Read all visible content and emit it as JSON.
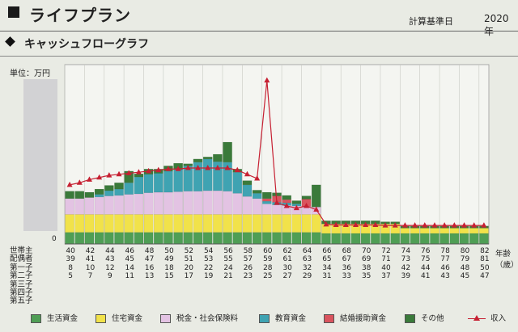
{
  "header": {
    "title": "ライフプラン",
    "calc_label": "計算基準日",
    "year": "2020年"
  },
  "section": {
    "title": "キャッシュフローグラフ",
    "unit": "単位：万円",
    "zero": "0"
  },
  "table": {
    "rows": [
      {
        "label": "世帯主",
        "values": [
          "40",
          "42",
          "44",
          "46",
          "48",
          "50",
          "52",
          "54",
          "56",
          "58",
          "60",
          "62",
          "64",
          "66",
          "68",
          "70",
          "72",
          "74",
          "76",
          "78",
          "80",
          "82"
        ]
      },
      {
        "label": "配偶者",
        "values": [
          "39",
          "41",
          "43",
          "45",
          "47",
          "49",
          "51",
          "53",
          "55",
          "57",
          "59",
          "61",
          "63",
          "65",
          "67",
          "69",
          "71",
          "73",
          "75",
          "77",
          "79",
          "81"
        ]
      },
      {
        "label": "第一子",
        "values": [
          "8",
          "10",
          "12",
          "14",
          "16",
          "18",
          "20",
          "22",
          "24",
          "26",
          "28",
          "30",
          "32",
          "34",
          "36",
          "38",
          "40",
          "42",
          "44",
          "46",
          "48",
          "50"
        ]
      },
      {
        "label": "第二子",
        "values": [
          "5",
          "7",
          "9",
          "11",
          "13",
          "15",
          "17",
          "19",
          "21",
          "23",
          "25",
          "27",
          "29",
          "31",
          "33",
          "35",
          "37",
          "39",
          "41",
          "43",
          "45",
          "47"
        ]
      },
      {
        "label": "第三子",
        "values": []
      },
      {
        "label": "第四子",
        "values": []
      },
      {
        "label": "第五子",
        "values": []
      }
    ],
    "x_unit": "年齢（歳）"
  },
  "legend": [
    {
      "label": "生活資金",
      "color": "#4f9e55"
    },
    {
      "label": "住宅資金",
      "color": "#f1e24a"
    },
    {
      "label": "税金・社会保険料",
      "color": "#e3c3e3"
    },
    {
      "label": "教育資金",
      "color": "#3fa3b2"
    },
    {
      "label": "結婚援助資金",
      "color": "#d9545e"
    },
    {
      "label": "その他",
      "color": "#3a7a3a"
    },
    {
      "label": "収入",
      "color": "#c62032"
    }
  ],
  "chart_data": {
    "type": "bar",
    "stacked": true,
    "x_label": "年齢",
    "ages": [
      40,
      41,
      42,
      43,
      44,
      45,
      46,
      47,
      48,
      49,
      50,
      51,
      52,
      53,
      54,
      55,
      56,
      57,
      58,
      59,
      60,
      61,
      62,
      63,
      64,
      65,
      66,
      67,
      68,
      69,
      70,
      71,
      72,
      73,
      74,
      75,
      76,
      77,
      78,
      79,
      80,
      81,
      82
    ],
    "series": [
      {
        "name": "生活資金",
        "color": "#4f9e55",
        "values": [
          22,
          22,
          22,
          22,
          22,
          22,
          22,
          22,
          22,
          22,
          22,
          22,
          22,
          22,
          22,
          22,
          22,
          22,
          22,
          22,
          22,
          22,
          22,
          22,
          22,
          22,
          20,
          20,
          20,
          20,
          20,
          20,
          20,
          20,
          20,
          20,
          20,
          20,
          20,
          20,
          20,
          20,
          20
        ]
      },
      {
        "name": "住宅資金",
        "color": "#f1e24a",
        "values": [
          34,
          34,
          34,
          34,
          34,
          34,
          34,
          34,
          34,
          34,
          34,
          34,
          34,
          34,
          34,
          34,
          34,
          34,
          34,
          34,
          34,
          34,
          34,
          34,
          34,
          34,
          18,
          18,
          18,
          18,
          18,
          18,
          18,
          18,
          10,
          10,
          10,
          10,
          10,
          10,
          10,
          10,
          10
        ]
      },
      {
        "name": "税金・社会保険料",
        "color": "#e3c3e3",
        "values": [
          30,
          30,
          32,
          33,
          35,
          36,
          38,
          39,
          41,
          42,
          42,
          43,
          44,
          44,
          45,
          45,
          44,
          40,
          34,
          30,
          20,
          18,
          17,
          16,
          15,
          14,
          0,
          0,
          0,
          0,
          0,
          0,
          0,
          0,
          0,
          0,
          0,
          0,
          0,
          0,
          0,
          0,
          0
        ]
      },
      {
        "name": "教育資金",
        "color": "#3fa3b2",
        "values": [
          0,
          0,
          0,
          5,
          10,
          12,
          22,
          32,
          35,
          36,
          40,
          42,
          48,
          55,
          60,
          55,
          55,
          40,
          22,
          10,
          5,
          5,
          5,
          4,
          0,
          0,
          0,
          0,
          0,
          0,
          0,
          0,
          0,
          0,
          0,
          0,
          0,
          0,
          0,
          0,
          0,
          0,
          0
        ]
      },
      {
        "name": "結婚援助資金",
        "color": "#d9545e",
        "values": [
          0,
          0,
          0,
          0,
          0,
          0,
          0,
          0,
          0,
          0,
          0,
          0,
          0,
          0,
          0,
          0,
          0,
          0,
          0,
          0,
          5,
          12,
          6,
          0,
          14,
          0,
          0,
          0,
          0,
          0,
          0,
          0,
          0,
          0,
          0,
          0,
          0,
          0,
          0,
          0,
          0,
          0,
          0
        ]
      },
      {
        "name": "その他",
        "color": "#3a7a3a",
        "values": [
          14,
          14,
          10,
          10,
          10,
          12,
          22,
          6,
          10,
          8,
          10,
          12,
          4,
          6,
          4,
          14,
          38,
          6,
          8,
          6,
          12,
          6,
          8,
          6,
          6,
          42,
          6,
          6,
          6,
          6,
          6,
          6,
          4,
          4,
          4,
          4,
          4,
          4,
          4,
          4,
          4,
          4,
          4
        ]
      }
    ],
    "line_series": {
      "name": "収入",
      "color": "#c62032",
      "values": [
        112,
        116,
        122,
        126,
        130,
        132,
        134,
        136,
        138,
        140,
        142,
        142,
        144,
        144,
        144,
        144,
        144,
        140,
        132,
        124,
        310,
        78,
        72,
        68,
        72,
        65,
        37,
        36,
        36,
        36,
        36,
        36,
        35,
        35,
        35,
        35,
        35,
        35,
        35,
        35,
        35,
        35,
        35
      ]
    },
    "ylim": [
      0,
      340
    ]
  }
}
